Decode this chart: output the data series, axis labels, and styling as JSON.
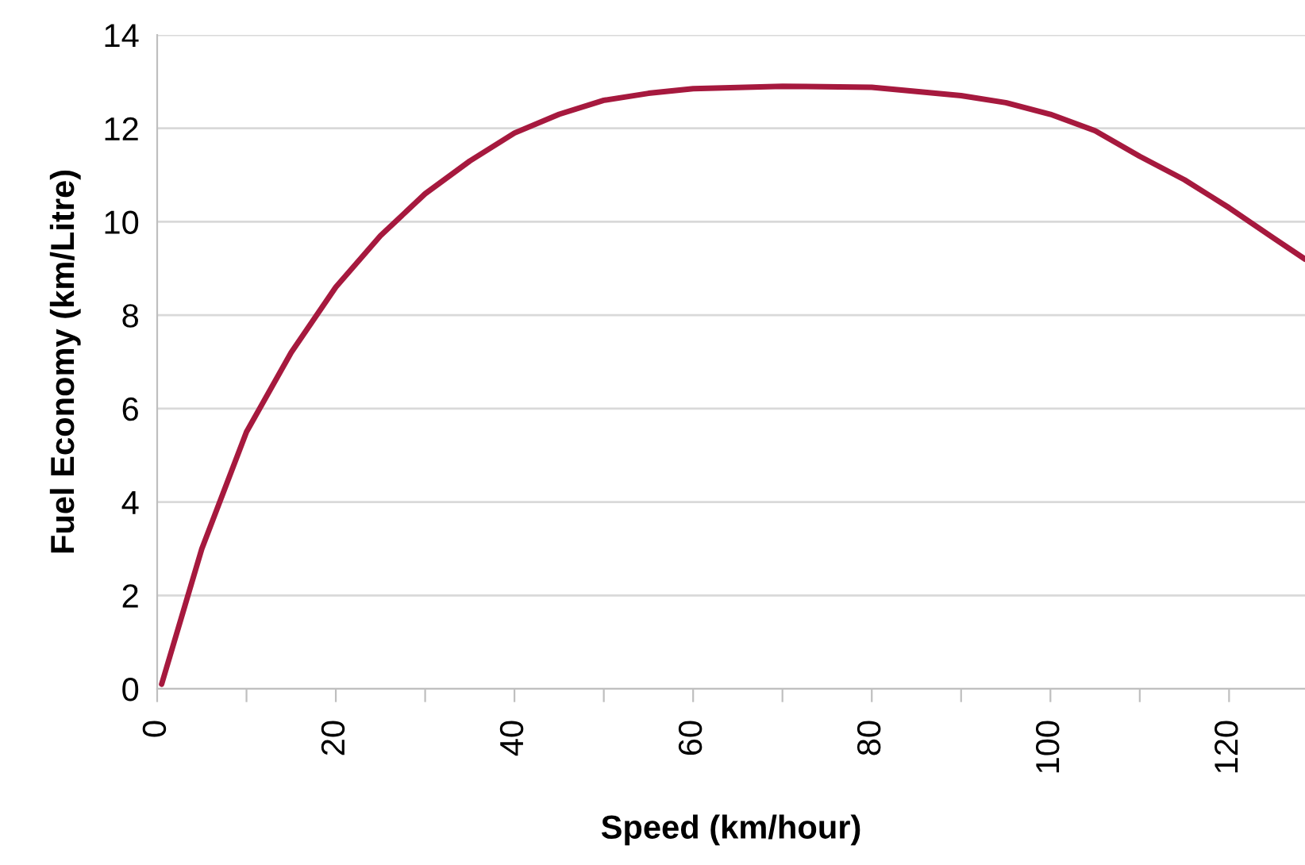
{
  "chart_data": {
    "type": "line",
    "xlabel": "Speed (km/hour)",
    "ylabel": "Fuel Economy (km/Litre)",
    "x": [
      0.5,
      5,
      10,
      15,
      20,
      25,
      30,
      35,
      40,
      45,
      50,
      55,
      60,
      70,
      80,
      90,
      95,
      100,
      105,
      110,
      115,
      120,
      125,
      128.5
    ],
    "series": [
      {
        "color": "#a6193e",
        "values": [
          0.1,
          3,
          5.5,
          7.2,
          8.6,
          9.7,
          10.6,
          11.3,
          11.9,
          12.3,
          12.6,
          12.75,
          12.85,
          12.9,
          12.88,
          12.7,
          12.55,
          12.3,
          11.95,
          11.4,
          10.9,
          10.3,
          9.65,
          9.2
        ]
      }
    ],
    "xlim": [
      0,
      128.5
    ],
    "ylim": [
      0,
      14
    ],
    "xticks": [
      0,
      {
        "value": 10,
        "label": null
      },
      20,
      {
        "value": 30,
        "label": null
      },
      40,
      {
        "value": 50,
        "label": null
      },
      60,
      {
        "value": 70,
        "label": null
      },
      80,
      {
        "value": 90,
        "label": null
      },
      100,
      {
        "value": 110,
        "label": null
      },
      120
    ],
    "yticks": [
      0,
      2,
      4,
      6,
      8,
      10,
      12,
      14
    ],
    "grid": "y",
    "line_style": "solid",
    "marker": "none"
  }
}
